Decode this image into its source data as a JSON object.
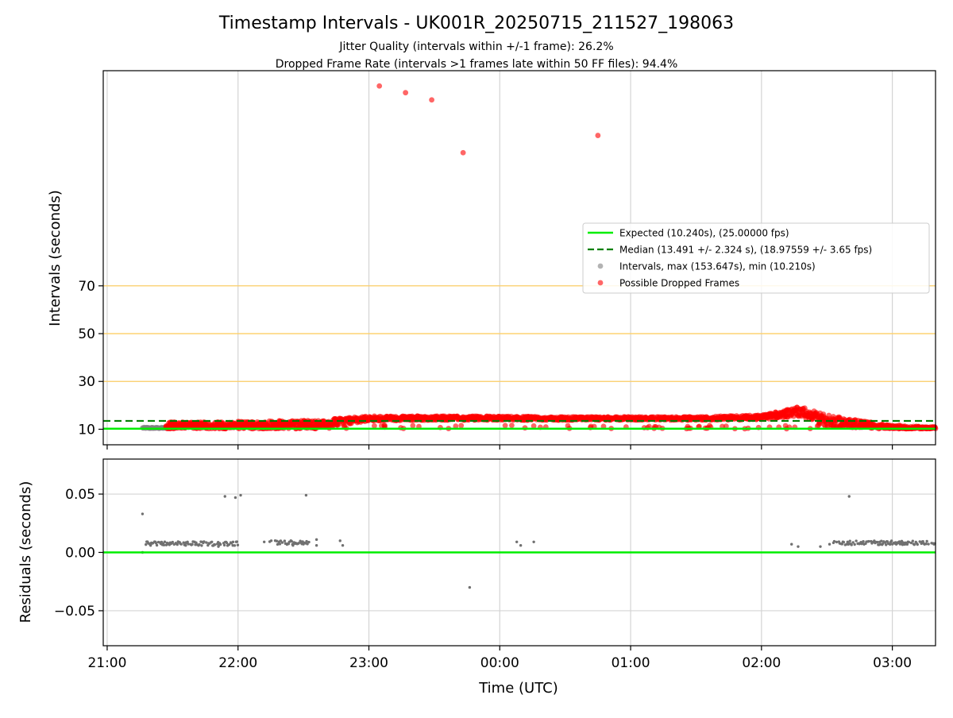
{
  "chart_data": [
    {
      "type": "scatter",
      "title": "Timestamp Intervals - UK001R_20250715_211527_198063",
      "subtitle_lines": [
        "Jitter Quality (intervals within +/-1 frame): 26.2%",
        "Dropped Frame Rate (intervals >1 frames late within 50 FF files): 94.4%"
      ],
      "xlabel": "",
      "ylabel": "Intervals (seconds)",
      "x_unit": "hours since 21:00 UTC",
      "xlim": [
        -0.03,
        6.33
      ],
      "ylim": [
        3.5,
        160
      ],
      "y_ticks": [
        10,
        30,
        50,
        70
      ],
      "grid": true,
      "horizontal_reference_lines": [
        30,
        50,
        70
      ],
      "reference_line_color": "#ffd066",
      "legend_placement": "center-right",
      "legend": [
        {
          "label": "Expected (10.240s), (25.00000 fps)",
          "kind": "line",
          "color": "#00ee00"
        },
        {
          "label": "Median (13.491 +/- 2.324 s), (18.97559 +/- 3.65 fps)",
          "kind": "dashed",
          "color": "#007f00"
        },
        {
          "label": "Intervals, max (153.647s), min (10.210s)",
          "kind": "marker",
          "color": "#808080"
        },
        {
          "label": "Possible Dropped Frames",
          "kind": "marker",
          "color": "#ff0000"
        }
      ],
      "expected_value": 10.24,
      "median_value": 13.491,
      "outliers": [
        {
          "x": 2.08,
          "y": 153.6
        },
        {
          "x": 2.28,
          "y": 150.8
        },
        {
          "x": 2.48,
          "y": 147.8
        },
        {
          "x": 2.72,
          "y": 125.7
        },
        {
          "x": 3.75,
          "y": 132.9
        }
      ],
      "band_profile": [
        {
          "x": 0.7,
          "low": 10.2,
          "high": 13.0
        },
        {
          "x": 1.6,
          "low": 10.2,
          "high": 13.8
        },
        {
          "x": 2.0,
          "low": 13.5,
          "high": 15.5
        },
        {
          "x": 2.5,
          "low": 13.8,
          "high": 15.5
        },
        {
          "x": 3.0,
          "low": 13.8,
          "high": 15.5
        },
        {
          "x": 3.5,
          "low": 13.8,
          "high": 15.2
        },
        {
          "x": 4.5,
          "low": 13.8,
          "high": 15.2
        },
        {
          "x": 5.0,
          "low": 14.0,
          "high": 16.0
        },
        {
          "x": 5.3,
          "low": 15.5,
          "high": 19.5
        },
        {
          "x": 5.5,
          "low": 11.0,
          "high": 16.0
        },
        {
          "x": 6.0,
          "low": 10.2,
          "high": 11.5
        },
        {
          "x": 6.33,
          "low": 10.2,
          "high": 11.0
        }
      ],
      "red_band_range": [
        0.45,
        6.33
      ],
      "gray_band_range": [
        0.27,
        0.47
      ]
    },
    {
      "type": "scatter",
      "xlabel": "Time (UTC)",
      "ylabel": "Residuals (seconds)",
      "x_unit": "hours since 21:00 UTC",
      "xlim": [
        -0.03,
        6.33
      ],
      "ylim": [
        -0.08,
        0.08
      ],
      "y_ticks": [
        "0.05",
        "0.00",
        "−0.05"
      ],
      "y_tick_values": [
        0.05,
        0.0,
        -0.05
      ],
      "x_ticks": [
        "21:00",
        "22:00",
        "23:00",
        "00:00",
        "01:00",
        "02:00",
        "03:00"
      ],
      "x_tick_values": [
        0,
        1,
        2,
        3,
        4,
        5,
        6
      ],
      "grid": true,
      "zero_line_color": "#00ee00",
      "residual_points": [
        {
          "x": 0.27,
          "y": 0.033
        },
        {
          "x": 0.27,
          "y": 0.0
        },
        {
          "x": 0.9,
          "y": 0.048
        },
        {
          "x": 0.98,
          "y": 0.047
        },
        {
          "x": 1.02,
          "y": 0.049
        },
        {
          "x": 1.52,
          "y": 0.049
        },
        {
          "x": 0.6,
          "y": 0.006
        },
        {
          "x": 0.85,
          "y": 0.005
        },
        {
          "x": 0.96,
          "y": 0.006
        },
        {
          "x": 1.2,
          "y": 0.009
        },
        {
          "x": 1.42,
          "y": 0.006
        },
        {
          "x": 1.6,
          "y": 0.011
        },
        {
          "x": 1.6,
          "y": 0.006
        },
        {
          "x": 1.78,
          "y": 0.01
        },
        {
          "x": 1.8,
          "y": 0.006
        },
        {
          "x": 2.77,
          "y": -0.03
        },
        {
          "x": 3.13,
          "y": 0.009
        },
        {
          "x": 3.16,
          "y": 0.006
        },
        {
          "x": 3.26,
          "y": 0.009
        },
        {
          "x": 5.23,
          "y": 0.007
        },
        {
          "x": 5.28,
          "y": 0.005
        },
        {
          "x": 5.45,
          "y": 0.005
        },
        {
          "x": 5.52,
          "y": 0.007
        },
        {
          "x": 5.67,
          "y": 0.048
        }
      ],
      "residual_clusters": [
        {
          "x_from": 0.29,
          "x_to": 1.0,
          "y": 0.0075
        },
        {
          "x_from": 1.2,
          "x_to": 1.55,
          "y": 0.0085
        },
        {
          "x_from": 5.55,
          "x_to": 6.33,
          "y": 0.0082
        }
      ]
    }
  ]
}
